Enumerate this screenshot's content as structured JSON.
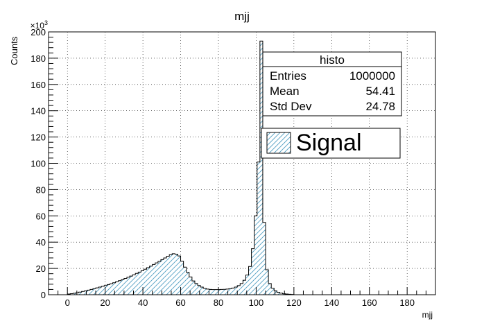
{
  "chart_data": {
    "type": "bar",
    "title": "mjj",
    "xlabel": "mjj",
    "ylabel": "Counts",
    "y_exponent_label": "×10",
    "y_exponent": "3",
    "xlim": [
      -10,
      195
    ],
    "ylim": [
      0,
      200
    ],
    "x_ticks": [
      "0",
      "20",
      "40",
      "60",
      "80",
      "100",
      "120",
      "140",
      "160",
      "180"
    ],
    "y_ticks": [
      "0",
      "20",
      "40",
      "60",
      "80",
      "100",
      "120",
      "140",
      "160",
      "180",
      "200"
    ],
    "grid": true,
    "bin_width": 1.5,
    "bin_start": 0,
    "values": [
      0.5,
      0.8,
      1.1,
      1.5,
      2,
      2.5,
      3,
      3.5,
      4,
      4.6,
      5.2,
      5.8,
      6.4,
      7,
      7.7,
      8.4,
      9.1,
      9.9,
      10.7,
      11.5,
      12.4,
      13.3,
      14.2,
      15.2,
      16.2,
      17.2,
      18.3,
      19.4,
      20.6,
      21.8,
      23,
      24.2,
      25.4,
      26.7,
      28,
      29.3,
      30.5,
      31.2,
      30.8,
      29.5,
      25.5,
      21,
      17,
      13.5,
      10.5,
      8.5,
      7,
      5.8,
      4.9,
      4.3,
      4,
      3.9,
      3.9,
      3.9,
      4,
      4.1,
      4.3,
      4.6,
      5.1,
      5.8,
      6.9,
      8.5,
      11,
      15,
      21.5,
      35,
      60,
      101,
      193,
      55,
      19,
      8.5,
      5,
      3,
      1.8,
      1.2,
      0.7,
      0.5,
      0.3,
      0.2
    ],
    "legend": {
      "position": "top-right",
      "label": "Signal"
    },
    "stats": {
      "title": "histo",
      "rows": [
        {
          "label": "Entries",
          "value": "1000000"
        },
        {
          "label": "Mean",
          "value": "54.41"
        },
        {
          "label": "Std Dev",
          "value": "24.78"
        }
      ]
    },
    "fill_color": "#4f9ec2",
    "line_color": "#000000"
  }
}
